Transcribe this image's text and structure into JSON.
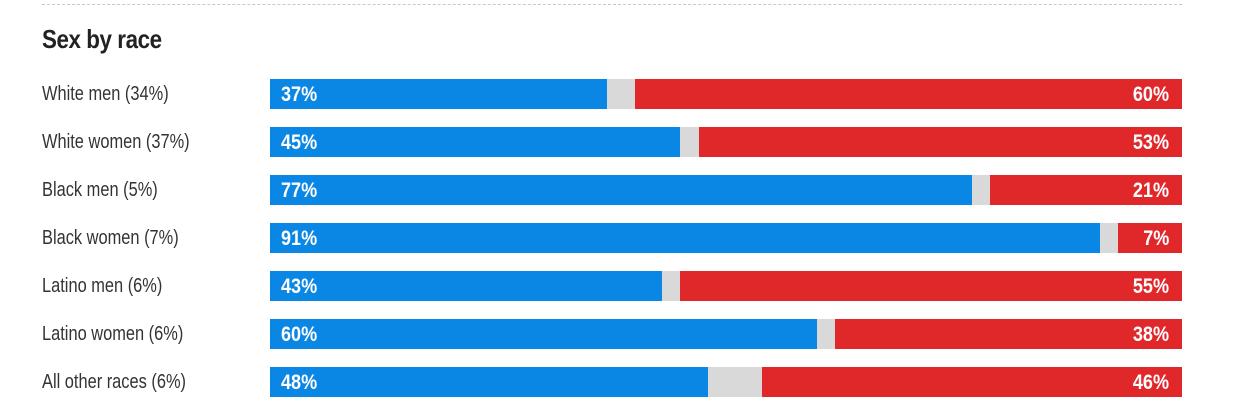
{
  "colors": {
    "dem": "#0a86e4",
    "rep": "#e0282b",
    "other": "#d9d9d9"
  },
  "chart_data": {
    "type": "bar",
    "title": "Sex by race",
    "categories": [
      "White men (34%)",
      "White women (37%)",
      "Black men (5%)",
      "Black women (7%)",
      "Latino men (6%)",
      "Latino women (6%)",
      "All other races (6%)"
    ],
    "series": [
      {
        "values": [
          37,
          45,
          77,
          91,
          43,
          60,
          48
        ],
        "color": "#0a86e4"
      },
      {
        "values": [
          60,
          53,
          21,
          7,
          55,
          38,
          46
        ],
        "color": "#e0282b"
      }
    ],
    "value_labels": {
      "dem": [
        "37%",
        "45%",
        "77%",
        "91%",
        "43%",
        "60%",
        "48%"
      ],
      "rep": [
        "60%",
        "53%",
        "21%",
        "7%",
        "55%",
        "38%",
        "46%"
      ]
    },
    "xlim": [
      0,
      100
    ],
    "stacked": true,
    "grid": false,
    "legend": "none"
  }
}
